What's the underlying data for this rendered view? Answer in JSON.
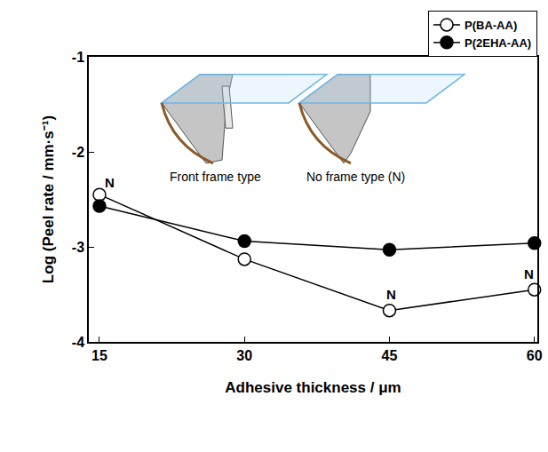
{
  "chart_data": {
    "type": "line",
    "x_label": "Adhesive thickness / μm",
    "y_label": "Log (Peel rate / mm·s⁻¹)",
    "x": [
      15,
      30,
      45,
      60
    ],
    "series": [
      {
        "name": "P(BA-AA)",
        "color": "#000000",
        "marker": "circle-open",
        "values": [
          -2.45,
          -3.13,
          -3.67,
          -3.45
        ]
      },
      {
        "name": "P(2EHA-AA)",
        "color": "#000000",
        "marker": "circle",
        "values": [
          -2.57,
          -2.94,
          -3.03,
          -2.96
        ]
      }
    ],
    "xlim": [
      13.9,
      60.3
    ],
    "xticks": [
      15,
      30,
      45,
      60
    ],
    "ylim": [
      -4,
      -1
    ],
    "yticks": [
      -4,
      -3,
      -2,
      -1
    ],
    "grid": false,
    "legend": "upper right",
    "annotations": [
      {
        "text": "N",
        "x": 15,
        "y": -2.45
      },
      {
        "text": "N",
        "x": 45,
        "y": -3.67
      },
      {
        "text": "N",
        "x": 60,
        "y": -3.45
      }
    ],
    "inset_labels": [
      "Front frame type",
      "No frame type (N)"
    ]
  }
}
